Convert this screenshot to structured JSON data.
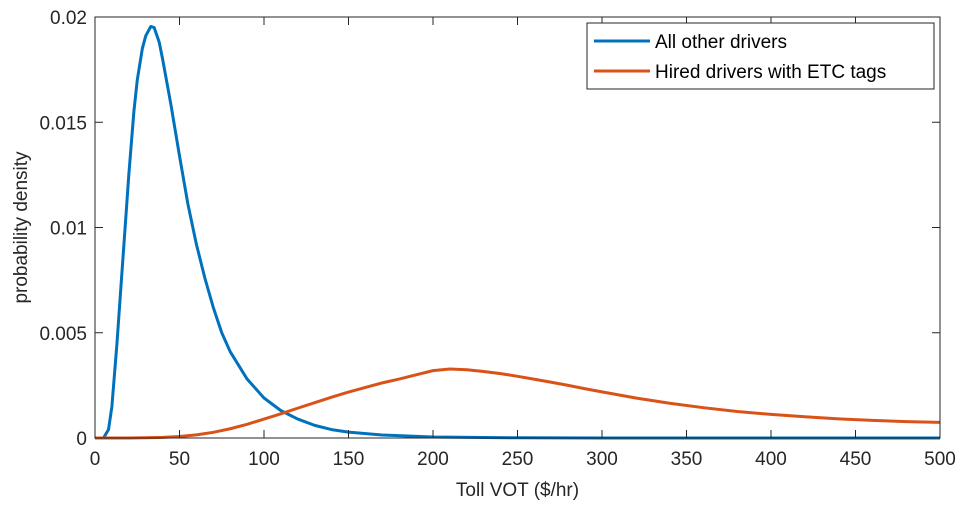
{
  "chart_data": {
    "type": "line",
    "title": "",
    "xlabel": "Toll VOT ($/hr)",
    "ylabel": "probability density",
    "xlim": [
      0,
      500
    ],
    "ylim": [
      0,
      0.02
    ],
    "xticks": [
      0,
      50,
      100,
      150,
      200,
      250,
      300,
      350,
      400,
      450,
      500
    ],
    "yticks": [
      0,
      0.005,
      0.01,
      0.015,
      0.02
    ],
    "xtick_labels": [
      "0",
      "50",
      "100",
      "150",
      "200",
      "250",
      "300",
      "350",
      "400",
      "450",
      "500"
    ],
    "ytick_labels": [
      "0",
      "0.005",
      "0.01",
      "0.015",
      "0.02"
    ],
    "grid": false,
    "legend_position": "top-right",
    "series": [
      {
        "name": "All other drivers",
        "color": "#0072BD",
        "points": [
          [
            0,
            0
          ],
          [
            5,
            0
          ],
          [
            8,
            0.0004
          ],
          [
            10,
            0.0015
          ],
          [
            13,
            0.0045
          ],
          [
            15,
            0.0068
          ],
          [
            18,
            0.0102
          ],
          [
            20,
            0.0125
          ],
          [
            23,
            0.0155
          ],
          [
            25,
            0.017
          ],
          [
            28,
            0.0185
          ],
          [
            30,
            0.0191
          ],
          [
            33,
            0.01955
          ],
          [
            35,
            0.0195
          ],
          [
            38,
            0.0188
          ],
          [
            40,
            0.018
          ],
          [
            45,
            0.0158
          ],
          [
            50,
            0.0134
          ],
          [
            55,
            0.0111
          ],
          [
            60,
            0.0092
          ],
          [
            65,
            0.0076
          ],
          [
            70,
            0.0062
          ],
          [
            75,
            0.005
          ],
          [
            80,
            0.0041
          ],
          [
            90,
            0.0028
          ],
          [
            100,
            0.0019
          ],
          [
            110,
            0.0013
          ],
          [
            120,
            0.0009
          ],
          [
            130,
            0.0006
          ],
          [
            140,
            0.0004
          ],
          [
            150,
            0.00028
          ],
          [
            170,
            0.00014
          ],
          [
            200,
            5e-05
          ],
          [
            250,
            1e-05
          ],
          [
            300,
            0
          ],
          [
            500,
            0
          ]
        ]
      },
      {
        "name": "Hired drivers with ETC tags",
        "color": "#D95319",
        "points": [
          [
            0,
            0
          ],
          [
            20,
            2e-06
          ],
          [
            30,
            1e-05
          ],
          [
            40,
            3e-05
          ],
          [
            50,
            7e-05
          ],
          [
            60,
            0.00015
          ],
          [
            70,
            0.00027
          ],
          [
            80,
            0.00044
          ],
          [
            90,
            0.00065
          ],
          [
            100,
            0.0009
          ],
          [
            110,
            0.00115
          ],
          [
            120,
            0.00142
          ],
          [
            130,
            0.00168
          ],
          [
            140,
            0.00194
          ],
          [
            150,
            0.00218
          ],
          [
            160,
            0.0024
          ],
          [
            170,
            0.00262
          ],
          [
            180,
            0.0028
          ],
          [
            190,
            0.003
          ],
          [
            200,
            0.0032
          ],
          [
            210,
            0.00328
          ],
          [
            220,
            0.00324
          ],
          [
            230,
            0.00316
          ],
          [
            240,
            0.00306
          ],
          [
            250,
            0.00293
          ],
          [
            260,
            0.00279
          ],
          [
            270,
            0.00265
          ],
          [
            280,
            0.0025
          ],
          [
            290,
            0.00234
          ],
          [
            300,
            0.00219
          ],
          [
            320,
            0.0019
          ],
          [
            340,
            0.00165
          ],
          [
            360,
            0.00144
          ],
          [
            380,
            0.00126
          ],
          [
            400,
            0.00112
          ],
          [
            420,
            0.00101
          ],
          [
            440,
            0.00091
          ],
          [
            460,
            0.00084
          ],
          [
            480,
            0.00078
          ],
          [
            500,
            0.00074
          ]
        ]
      }
    ]
  }
}
